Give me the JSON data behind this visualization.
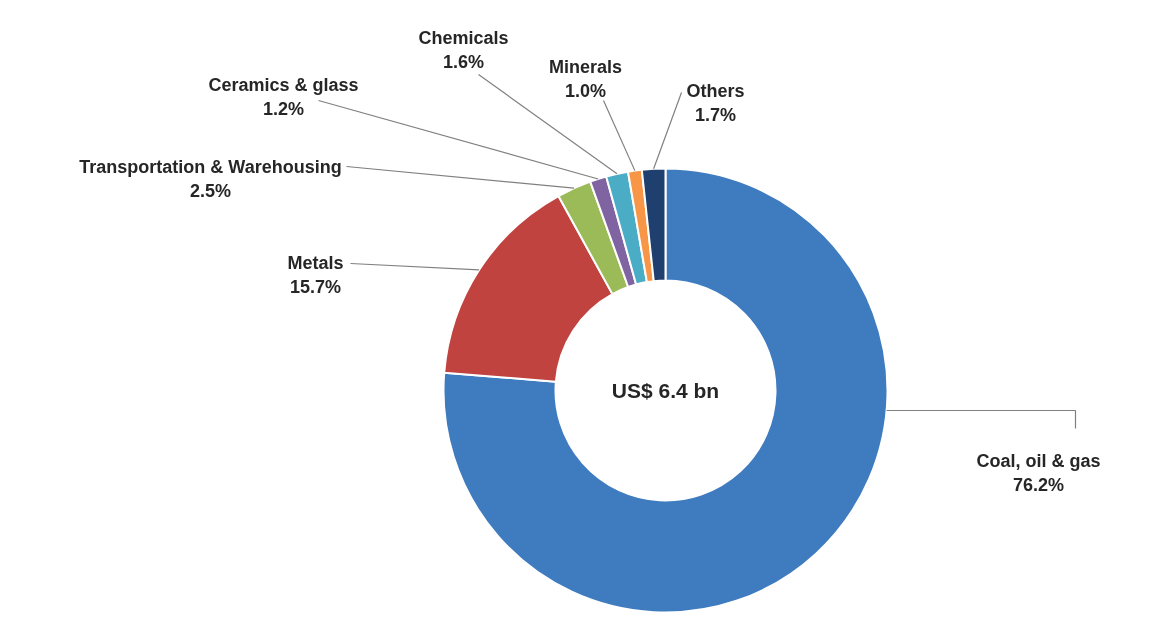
{
  "chart_data": {
    "type": "donut",
    "categories": [
      "Coal, oil & gas",
      "Metals",
      "Transportation & Warehousing",
      "Ceramics & glass",
      "Chemicals",
      "Minerals",
      "Others"
    ],
    "values": [
      76.2,
      15.7,
      2.5,
      1.2,
      1.6,
      1.0,
      1.7
    ],
    "value_labels": [
      "76.2%",
      "15.7%",
      "2.5%",
      "1.2%",
      "1.6%",
      "1.0%",
      "1.7%"
    ],
    "colors": [
      "#3f7bbf",
      "#c0433f",
      "#9bbb59",
      "#8064a2",
      "#4bacc6",
      "#f79646",
      "#1f3f6e"
    ],
    "annotations": [
      "US$ 6.4 bn"
    ]
  }
}
